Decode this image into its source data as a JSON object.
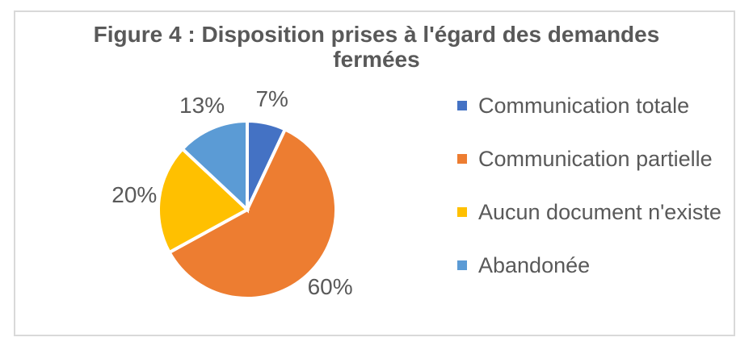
{
  "chart_data": {
    "type": "pie",
    "title": "Figure 4 : Disposition prises à l'égard des demandes fermées",
    "series": [
      {
        "label": "Communication totale",
        "value": 7,
        "data_label": "7%",
        "color": "#4472C4"
      },
      {
        "label": "Communication partielle",
        "value": 60,
        "data_label": "60%",
        "color": "#ED7D31"
      },
      {
        "label": "Aucun document n'existe",
        "value": 20,
        "data_label": "20%",
        "color": "#FFC000"
      },
      {
        "label": "Abandonée",
        "value": 13,
        "data_label": "13%",
        "color": "#5B9BD5"
      }
    ],
    "start_angle": "top",
    "direction": "clockwise",
    "legend_position": "right",
    "data_labels_shown": true,
    "slice_gap_color": "#FFFFFF",
    "background_color": "#FFFFFF",
    "frame_border_color": "#D9D9D9",
    "text_color": "#595959"
  }
}
